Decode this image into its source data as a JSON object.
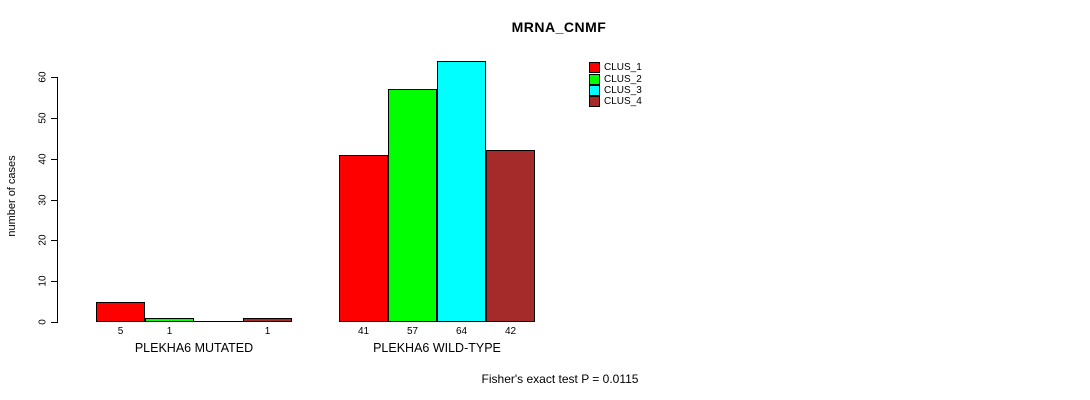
{
  "chart_data": {
    "type": "bar",
    "title": "MRNA_CNMF",
    "xlabel": "",
    "ylabel": "number of cases",
    "categories": [
      "PLEKHA6 MUTATED",
      "PLEKHA6 WILD-TYPE"
    ],
    "series": [
      {
        "name": "CLUS_1",
        "color": "#FF0000",
        "values": [
          5,
          41
        ]
      },
      {
        "name": "CLUS_2",
        "color": "#00FF00",
        "values": [
          1,
          57
        ]
      },
      {
        "name": "CLUS_3",
        "color": "#00FFFF",
        "values": [
          0,
          64
        ]
      },
      {
        "name": "CLUS_4",
        "color": "#A52A2A",
        "values": [
          1,
          42
        ]
      }
    ],
    "bar_labels": [
      [
        "5",
        "1",
        "",
        "1"
      ],
      [
        "41",
        "57",
        "64",
        "42"
      ]
    ],
    "yticks": [
      0,
      10,
      20,
      30,
      40,
      50,
      60
    ],
    "ylim": [
      0,
      60
    ],
    "grid": false,
    "legend_position": "top-right",
    "annotation": "Fisher's exact test P = 0.0115",
    "colors": {
      "background": "#FFFFFF",
      "axis": "#000000",
      "text": "#000000"
    }
  }
}
